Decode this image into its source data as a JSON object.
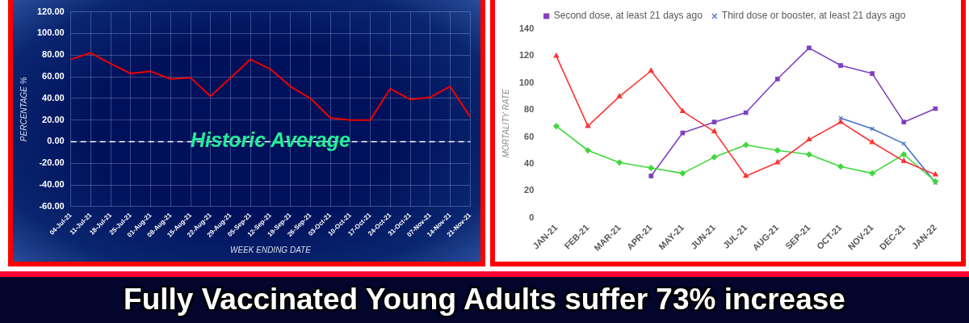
{
  "chart_data": [
    {
      "type": "line",
      "xlabel": "WEEK ENDING DATE",
      "ylabel": "PERCENTAGE %",
      "categories": [
        "04-Jul-21",
        "11-Jul-21",
        "18-Jul-21",
        "25-Jul-21",
        "01-Aug-21",
        "08-Aug-21",
        "15-Aug-21",
        "22-Aug-21",
        "29-Aug-21",
        "05-Sep-21",
        "12-Sep-21",
        "19-Sep-21",
        "26-Sep-21",
        "03-Oct-21",
        "10-Oct-21",
        "17-Oct-21",
        "24-Oct-21",
        "31-Oct-21",
        "07-Nov-21",
        "14-Nov-21",
        "21-Nov-21"
      ],
      "series": [
        {
          "color": "#ee0000",
          "values": [
            76,
            82,
            72,
            63,
            65,
            58,
            59,
            42,
            59,
            76,
            67,
            51,
            40,
            22,
            20,
            20,
            49,
            39,
            41,
            51,
            23
          ]
        }
      ],
      "ylim": [
        -60,
        120
      ],
      "yticks": [
        {
          "value": -60,
          "label": "-60.00"
        },
        {
          "value": -40,
          "label": "-40.00"
        },
        {
          "value": -20,
          "label": "-20.00"
        },
        {
          "value": 0,
          "label": "0.00"
        },
        {
          "value": 20,
          "label": "20.00"
        },
        {
          "value": 40,
          "label": "40.00"
        },
        {
          "value": 60,
          "label": "60.00"
        },
        {
          "value": 80,
          "label": "80.00"
        },
        {
          "value": 100,
          "label": "100.00"
        },
        {
          "value": 120,
          "label": "120.00"
        }
      ],
      "grid": true,
      "marker": "none",
      "ref_lines": [
        {
          "axis": "y",
          "value": 0,
          "label": "Historic Average",
          "color": "#ffffff",
          "line_style": "dashed"
        }
      ]
    },
    {
      "type": "line",
      "ylabel": "MORTALITY RATE",
      "categories": [
        "JAN-21",
        "FEB-21",
        "MAR-21",
        "APR-21",
        "MAY-21",
        "JUN-21",
        "JUL-21",
        "AUG-21",
        "SEP-21",
        "OCT-21",
        "NOV-21",
        "DEC-21",
        "JAN-22"
      ],
      "series": [
        {
          "color": "#ff3333",
          "marker": "triangle",
          "values": [
            120,
            68,
            90,
            109,
            79,
            64,
            31,
            41,
            58,
            71,
            56,
            42,
            32
          ]
        },
        {
          "color": "#3fd83a",
          "marker": "diamond",
          "values": [
            68,
            50,
            41,
            37,
            33,
            45,
            54,
            50,
            47,
            38,
            33,
            47,
            27
          ]
        },
        {
          "name": "Second dose, at least 21 days ago",
          "color": "#8040c0",
          "marker": "square",
          "values": [
            null,
            null,
            null,
            31,
            63,
            71,
            78,
            103,
            126,
            113,
            107,
            71,
            81
          ]
        },
        {
          "name": "Third dose or booster, at least 21 days ago",
          "color": "#4472c4",
          "marker": "cross",
          "values": [
            null,
            null,
            null,
            null,
            null,
            null,
            null,
            null,
            null,
            74,
            66,
            55,
            26
          ]
        }
      ],
      "ylim": [
        0,
        140
      ],
      "yticks": [
        0,
        20,
        40,
        60,
        80,
        100,
        120,
        140
      ],
      "grid": false,
      "legend": "top"
    },
    {
      "type": "other",
      "title": "Fully Vaccinated Young Adults suffer 73% increase"
    }
  ]
}
